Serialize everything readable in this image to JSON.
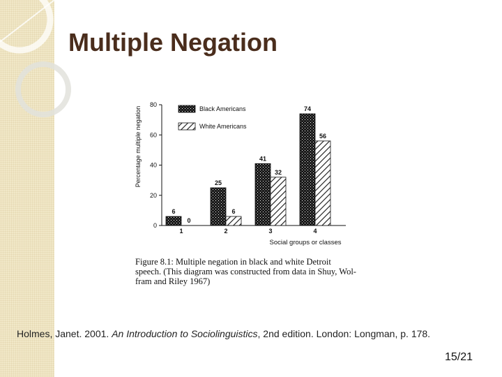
{
  "slide": {
    "title": "Multiple Negation",
    "page_number": "15/21",
    "citation": {
      "prefix": "Holmes, Janet. 2001.  ",
      "book_title": "An Introduction to Sociolinguistics",
      "suffix": ", 2nd edition.  London: Longman, p. 178."
    }
  },
  "figure": {
    "caption_lines": [
      "Figure 8.1:   Multiple negation in black and white Detroit",
      "speech. (This diagram was constructed from data in Shuy, Wol-",
      "fram and Riley 1967)"
    ]
  },
  "chart_data": {
    "type": "bar",
    "categories": [
      "1",
      "2",
      "3",
      "4"
    ],
    "series": [
      {
        "name": "Black Americans",
        "values": [
          6,
          25,
          41,
          74
        ],
        "pattern": "stipple-black"
      },
      {
        "name": "White Americans",
        "values": [
          0,
          6,
          32,
          56
        ],
        "pattern": "diagonal-hatch"
      }
    ],
    "ylabel": "Percentage multiple negation",
    "xlabel": "Social groups or classes",
    "ylim": [
      0,
      80
    ],
    "yticks": [
      "0",
      "20",
      "40",
      "60",
      "80"
    ],
    "legend": "top-left inside",
    "grid": false,
    "colors": {
      "ink": "#111111",
      "background": "#ffffff"
    }
  }
}
